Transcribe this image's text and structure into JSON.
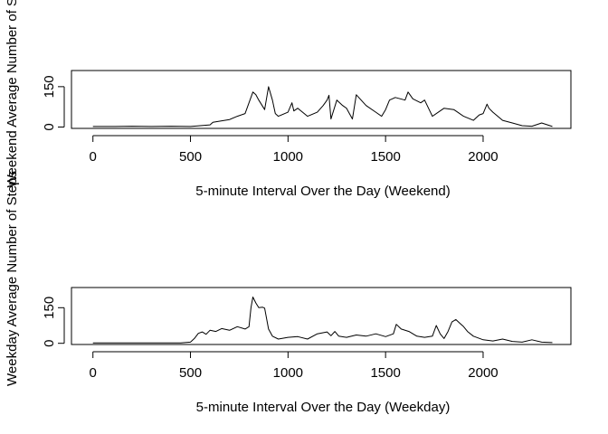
{
  "chart_data": [
    {
      "type": "line",
      "xlabel": "5-minute Interval Over the Day (Weekend)",
      "ylabel": "Weekend Average Number of Steps",
      "xlim": [
        -110,
        2450
      ],
      "ylim": [
        -5,
        210
      ],
      "xticks": [
        0,
        500,
        1000,
        1500,
        2000
      ],
      "yticks": [
        0,
        150
      ],
      "grid": false,
      "series": [
        {
          "x": [
            0,
            100,
            200,
            300,
            400,
            500,
            550,
            600,
            615,
            650,
            700,
            740,
            780,
            800,
            820,
            835,
            850,
            880,
            900,
            920,
            935,
            950,
            1000,
            1020,
            1030,
            1050,
            1100,
            1150,
            1180,
            1200,
            1210,
            1220,
            1250,
            1280,
            1300,
            1330,
            1350,
            1400,
            1450,
            1480,
            1500,
            1520,
            1550,
            1600,
            1615,
            1640,
            1680,
            1700,
            1740,
            1800,
            1850,
            1900,
            1950,
            1980,
            2000,
            2020,
            2030,
            2050,
            2100,
            2150,
            2200,
            2250,
            2300,
            2355
          ],
          "y": [
            2,
            2,
            3,
            2,
            3,
            2,
            5,
            8,
            18,
            22,
            28,
            40,
            50,
            90,
            130,
            120,
            100,
            65,
            150,
            100,
            50,
            40,
            55,
            90,
            60,
            70,
            40,
            55,
            80,
            100,
            118,
            30,
            100,
            80,
            70,
            30,
            120,
            80,
            55,
            40,
            65,
            100,
            110,
            100,
            130,
            105,
            90,
            100,
            40,
            70,
            65,
            40,
            25,
            45,
            50,
            85,
            70,
            55,
            25,
            15,
            5,
            3,
            15,
            2
          ]
        }
      ]
    },
    {
      "type": "line",
      "xlabel": "5-minute Interval Over the Day (Weekday)",
      "ylabel": "Weekday Average Number of Steps",
      "xlim": [
        -110,
        2450
      ],
      "ylim": [
        -5,
        235
      ],
      "xticks": [
        0,
        500,
        1000,
        1500,
        2000
      ],
      "yticks": [
        0,
        150
      ],
      "grid": false,
      "series": [
        {
          "x": [
            0,
            100,
            200,
            300,
            400,
            450,
            500,
            520,
            540,
            560,
            580,
            600,
            630,
            660,
            700,
            740,
            780,
            800,
            810,
            820,
            835,
            850,
            870,
            880,
            900,
            920,
            950,
            1000,
            1050,
            1100,
            1150,
            1200,
            1220,
            1240,
            1260,
            1300,
            1350,
            1400,
            1450,
            1500,
            1540,
            1555,
            1580,
            1620,
            1660,
            1700,
            1740,
            1760,
            1780,
            1800,
            1820,
            1840,
            1860,
            1880,
            1900,
            1920,
            1950,
            2000,
            2050,
            2100,
            2150,
            2200,
            2250,
            2300,
            2355
          ],
          "y": [
            2,
            2,
            2,
            2,
            2,
            2,
            5,
            20,
            42,
            48,
            38,
            55,
            50,
            62,
            55,
            70,
            60,
            70,
            150,
            195,
            170,
            150,
            152,
            148,
            60,
            30,
            18,
            25,
            28,
            18,
            40,
            48,
            32,
            50,
            30,
            25,
            35,
            30,
            40,
            28,
            40,
            80,
            60,
            50,
            30,
            25,
            30,
            75,
            40,
            20,
            50,
            90,
            100,
            85,
            70,
            50,
            30,
            15,
            10,
            18,
            8,
            5,
            15,
            5,
            3
          ]
        }
      ]
    }
  ]
}
